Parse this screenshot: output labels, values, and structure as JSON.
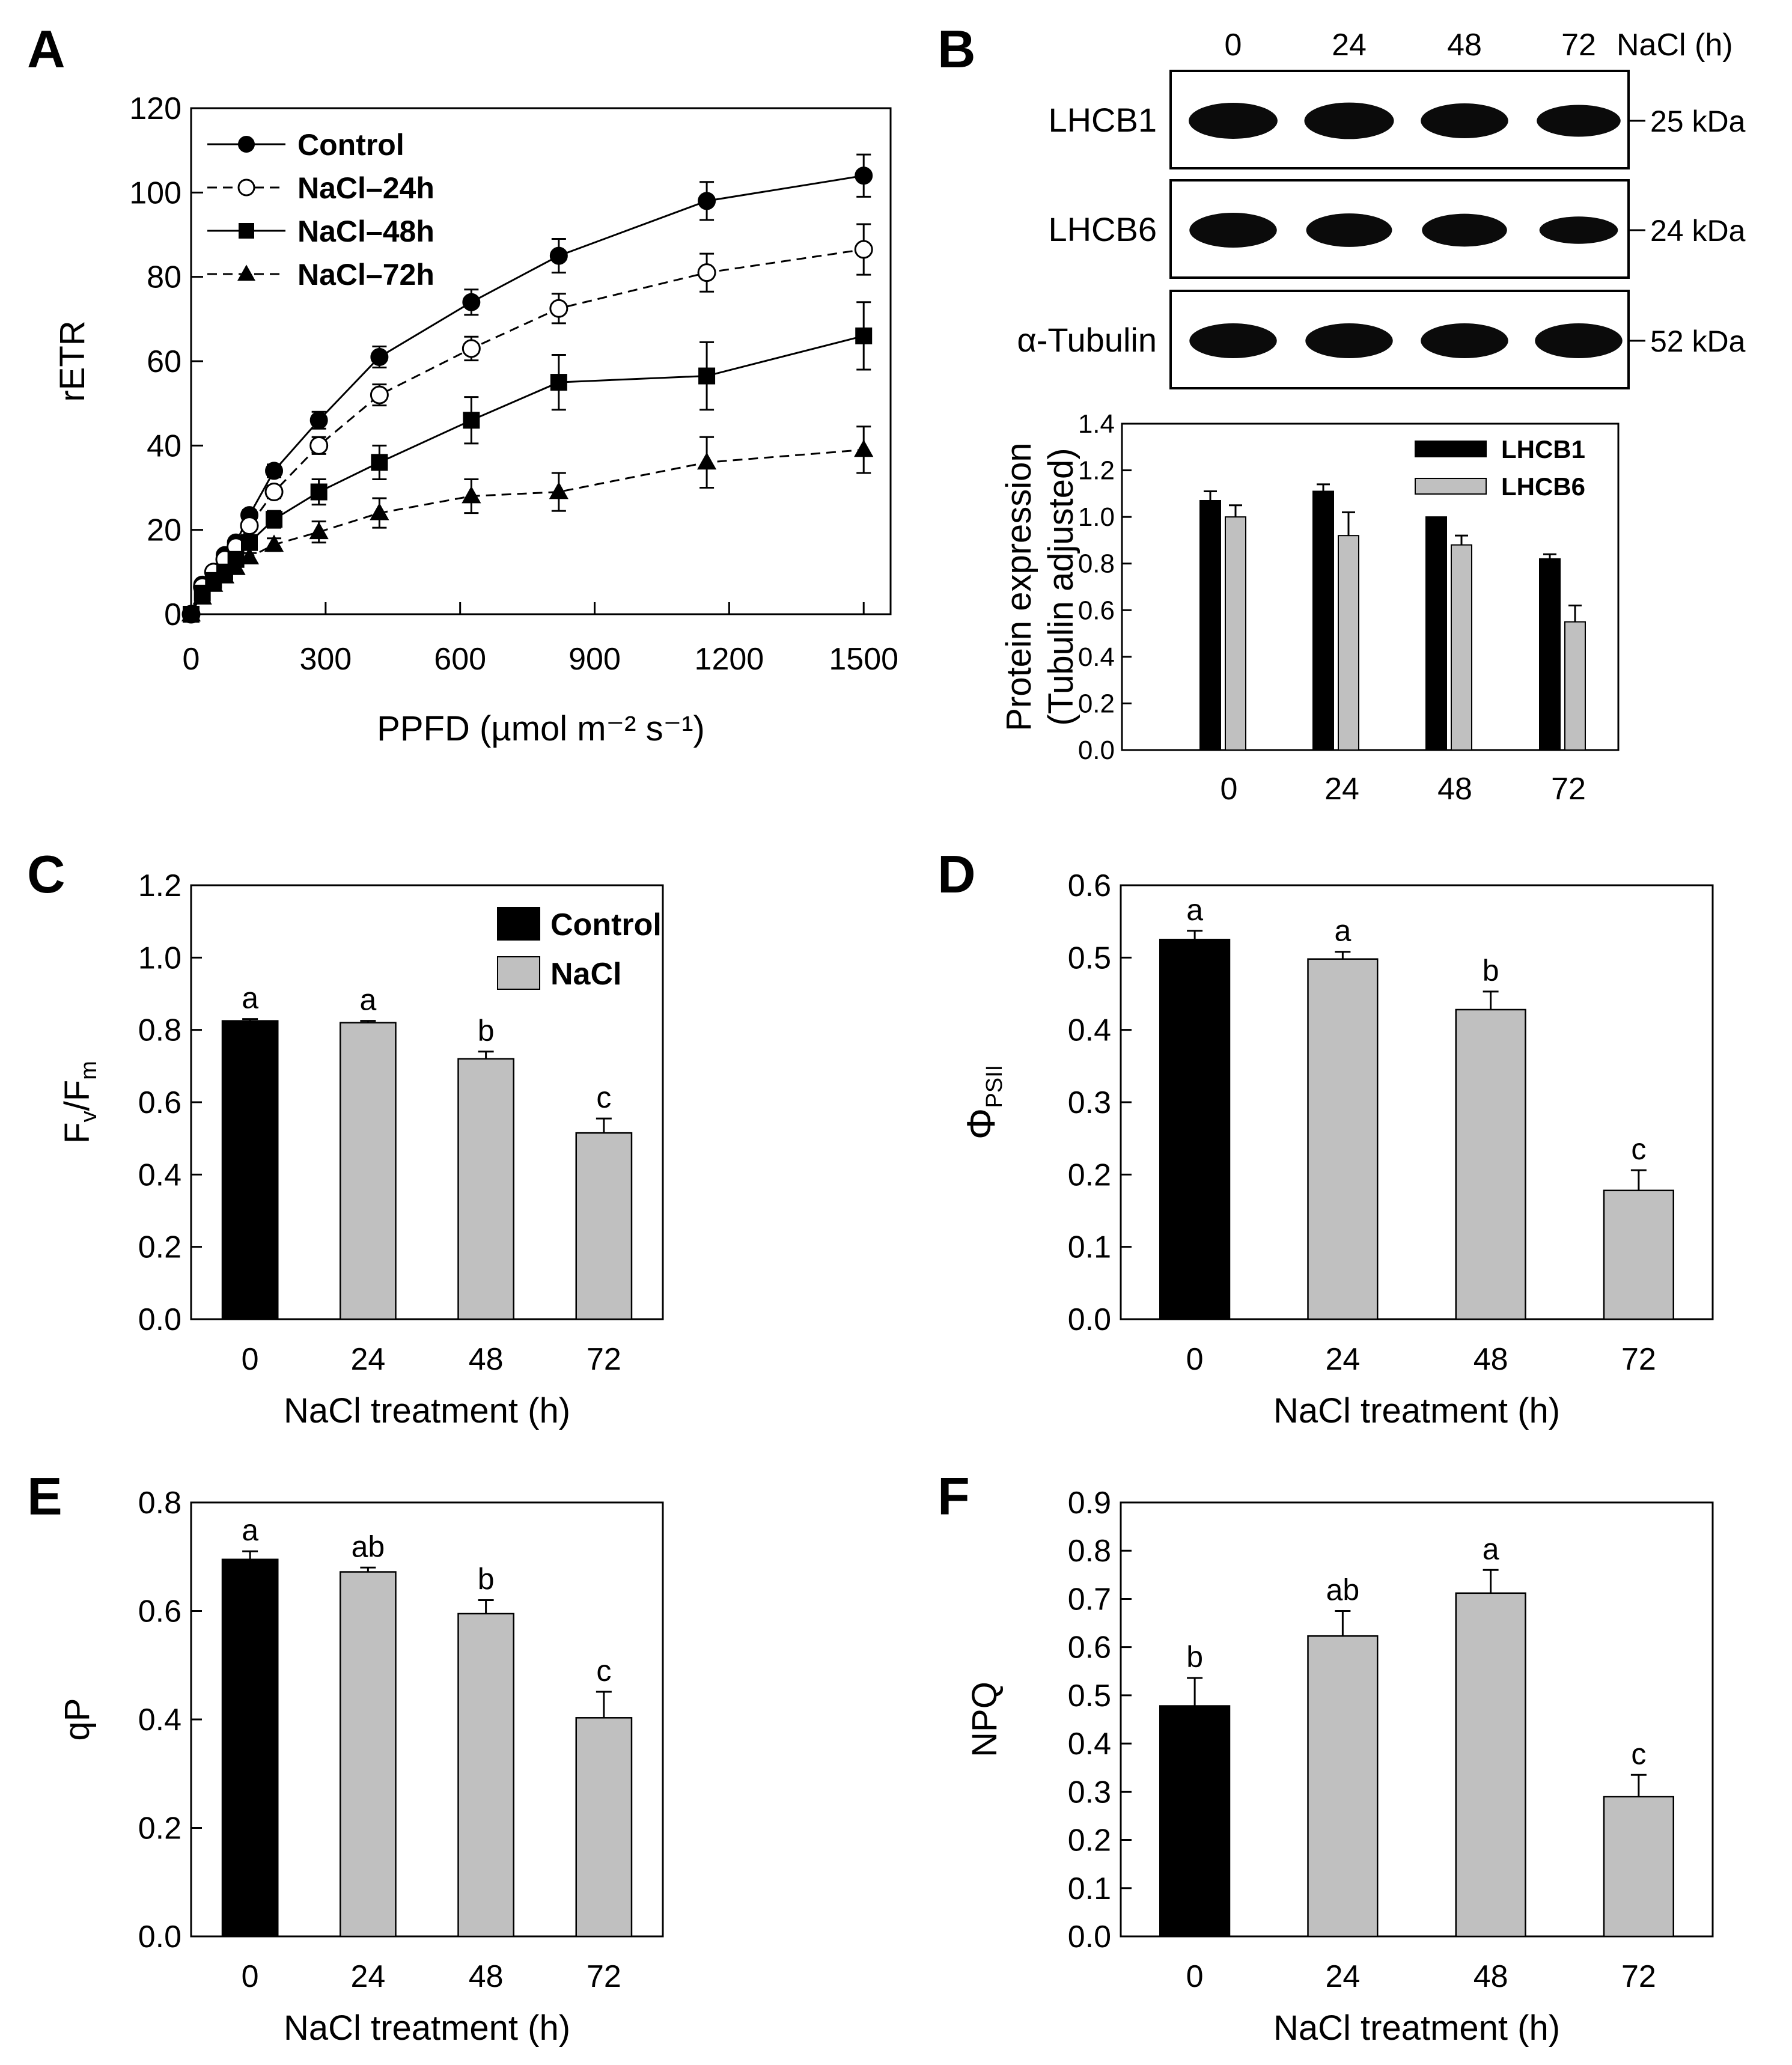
{
  "panels": [
    {
      "letter": "A",
      "chart_data": {
        "type": "line",
        "xlabel": "PPFD (µmol m⁻² s⁻¹)",
        "ylabel": "rETR",
        "xlim": [
          0,
          1560
        ],
        "ylim": [
          0,
          120
        ],
        "xticks": [
          "0",
          "300",
          "600",
          "900",
          "1200",
          "1500"
        ],
        "yticks": [
          "0",
          "20",
          "40",
          "60",
          "80",
          "100",
          "120"
        ],
        "x": [
          0,
          25,
          50,
          75,
          100,
          130,
          185,
          285,
          420,
          625,
          820,
          1150,
          1500
        ],
        "series": [
          {
            "name": "Control",
            "marker": "filled-circle",
            "dash": "solid",
            "values": [
              0,
              7,
              10,
              14,
              17,
              23.5,
              34,
              46,
              61,
              74,
              85,
              98,
              104
            ],
            "err": [
              0,
              0.5,
              0.8,
              1,
              1,
              1.2,
              1.5,
              2,
              2.5,
              3,
              4,
              4.5,
              5
            ]
          },
          {
            "name": "NaCl–24h",
            "marker": "open-circle",
            "dash": "dashed",
            "values": [
              0,
              6.5,
              10,
              13,
              16,
              21,
              29,
              40,
              52,
              63,
              72.5,
              81,
              86.5
            ],
            "err": [
              0,
              0.5,
              0.8,
              1,
              1,
              1.2,
              1.5,
              2,
              2.5,
              2.8,
              3.5,
              4.5,
              6
            ]
          },
          {
            "name": "NaCl–48h",
            "marker": "filled-square",
            "dash": "solid",
            "values": [
              0,
              5,
              8,
              10,
              13,
              17,
              22.5,
              29,
              36,
              46,
              55,
              56.5,
              66
            ],
            "err": [
              0,
              0.5,
              0.8,
              1,
              1,
              1.2,
              2,
              3,
              4,
              5.5,
              6.5,
              8,
              8
            ]
          },
          {
            "name": "NaCl–72h",
            "marker": "filled-triangle",
            "dash": "dashed",
            "values": [
              0,
              4,
              7,
              9,
              11,
              13.5,
              16.5,
              19.5,
              24,
              28,
              29,
              36,
              39
            ],
            "err": [
              0,
              0.5,
              0.8,
              1,
              1,
              1,
              1.5,
              2.5,
              3.5,
              4,
              4.5,
              6,
              5.5
            ]
          }
        ],
        "legend_placement": "top-left",
        "grid": false
      }
    },
    {
      "letter": "B",
      "blot": {
        "header_labels": [
          "0",
          "24",
          "48",
          "72"
        ],
        "header_unit": "NaCl (h)",
        "rows": [
          {
            "label": "LHCB1",
            "kda": "25 kDa",
            "band_intensity": [
              1.07,
              1.11,
              1.0,
              0.82
            ]
          },
          {
            "label": "LHCB6",
            "kda": "24 kDa",
            "band_intensity": [
              1.0,
              0.92,
              0.88,
              0.55
            ]
          },
          {
            "label": "α-Tubulin",
            "kda": "52 kDa",
            "band_intensity": [
              1,
              1,
              1,
              1
            ]
          }
        ]
      },
      "chart_data": {
        "type": "bar",
        "categories": [
          "0",
          "24",
          "48",
          "72"
        ],
        "ylabel_line1": "Protein expression",
        "ylabel_line2": "(Tubulin adjusted)",
        "ylim": [
          0,
          1.4
        ],
        "yticks": [
          "0.0",
          "0.2",
          "0.4",
          "0.6",
          "0.8",
          "1.0",
          "1.2",
          "1.4"
        ],
        "series": [
          {
            "name": "LHCB1",
            "color": "#000000",
            "values": [
              1.07,
              1.11,
              1.0,
              0.82
            ],
            "err": [
              0.04,
              0.03,
              0,
              0.02
            ]
          },
          {
            "name": "LHCB6",
            "color": "#c0c0c0",
            "values": [
              1.0,
              0.92,
              0.88,
              0.55
            ],
            "err": [
              0.05,
              0.1,
              0.04,
              0.07
            ]
          }
        ],
        "legend_placement": "top-right"
      }
    },
    {
      "letter": "C",
      "chart_data": {
        "type": "bar",
        "categories": [
          "0",
          "24",
          "48",
          "72"
        ],
        "xlabel": "NaCl treatment (h)",
        "ylabel_main": "F",
        "ylabel_sub1": "v",
        "ylabel_mid": "/F",
        "ylabel_sub2": "m",
        "ylim": [
          0,
          1.2
        ],
        "yticks": [
          "0.0",
          "0.2",
          "0.4",
          "0.6",
          "0.8",
          "1.0",
          "1.2"
        ],
        "values": [
          0.825,
          0.82,
          0.72,
          0.515
        ],
        "err": [
          0.005,
          0.005,
          0.02,
          0.04
        ],
        "sig_letters": [
          "a",
          "a",
          "b",
          "c"
        ],
        "bar_colors": [
          "#000000",
          "#c0c0c0",
          "#c0c0c0",
          "#c0c0c0"
        ],
        "legend": [
          {
            "name": "Control",
            "color": "#000000"
          },
          {
            "name": "NaCl",
            "color": "#c0c0c0"
          }
        ],
        "legend_placement": "top-right"
      }
    },
    {
      "letter": "D",
      "chart_data": {
        "type": "bar",
        "categories": [
          "0",
          "24",
          "48",
          "72"
        ],
        "xlabel": "NaCl treatment (h)",
        "ylabel_main": "Φ",
        "ylabel_sub1": "PSII",
        "ylim": [
          0,
          0.6
        ],
        "yticks": [
          "0.0",
          "0.1",
          "0.2",
          "0.3",
          "0.4",
          "0.5",
          "0.6"
        ],
        "values": [
          0.525,
          0.498,
          0.428,
          0.178
        ],
        "err": [
          0.012,
          0.01,
          0.025,
          0.028
        ],
        "sig_letters": [
          "a",
          "a",
          "b",
          "c"
        ],
        "bar_colors": [
          "#000000",
          "#c0c0c0",
          "#c0c0c0",
          "#c0c0c0"
        ]
      }
    },
    {
      "letter": "E",
      "chart_data": {
        "type": "bar",
        "categories": [
          "0",
          "24",
          "48",
          "72"
        ],
        "xlabel": "NaCl treatment (h)",
        "ylabel": "qP",
        "ylim": [
          0,
          0.8
        ],
        "yticks": [
          "0.0",
          "0.2",
          "0.4",
          "0.6",
          "0.8"
        ],
        "values": [
          0.695,
          0.672,
          0.595,
          0.403
        ],
        "err": [
          0.015,
          0.008,
          0.025,
          0.048
        ],
        "sig_letters": [
          "a",
          "ab",
          "b",
          "c"
        ],
        "bar_colors": [
          "#000000",
          "#c0c0c0",
          "#c0c0c0",
          "#c0c0c0"
        ]
      }
    },
    {
      "letter": "F",
      "chart_data": {
        "type": "bar",
        "categories": [
          "0",
          "24",
          "48",
          "72"
        ],
        "xlabel": "NaCl treatment (h)",
        "ylabel": "NPQ",
        "ylim": [
          0,
          0.9
        ],
        "yticks": [
          "0.0",
          "0.1",
          "0.2",
          "0.3",
          "0.4",
          "0.5",
          "0.6",
          "0.7",
          "0.8",
          "0.9"
        ],
        "values": [
          0.478,
          0.623,
          0.712,
          0.29
        ],
        "err": [
          0.058,
          0.052,
          0.048,
          0.045
        ],
        "sig_letters": [
          "b",
          "ab",
          "a",
          "c"
        ],
        "bar_colors": [
          "#000000",
          "#c0c0c0",
          "#c0c0c0",
          "#c0c0c0"
        ]
      }
    }
  ]
}
